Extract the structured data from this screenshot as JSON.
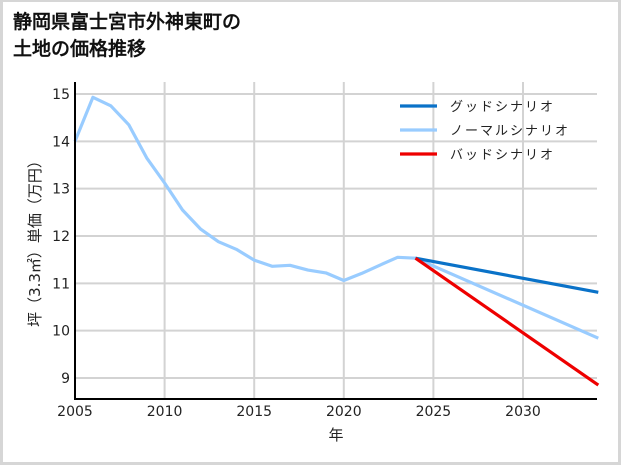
{
  "title": "静岡県富士宮市外神東町の\n土地の価格推移",
  "chart_data": {
    "type": "line",
    "title": "静岡県富士宮市外神東町の土地の価格推移",
    "xlabel": "年",
    "ylabel": "坪（3.3㎡）単価（万円）",
    "xlim": [
      2005,
      2034.2
    ],
    "ylim": [
      8.55,
      15.3
    ],
    "xticks": [
      2005,
      2010,
      2015,
      2020,
      2025,
      2030
    ],
    "yticks": [
      9,
      10,
      11,
      12,
      13,
      14,
      15
    ],
    "grid": true,
    "legend_position": "upper right",
    "series": [
      {
        "name": "グッドシナリオ",
        "color": "#0a72c8",
        "x": [
          2024,
          2034.2
        ],
        "y": [
          11.53,
          10.81
        ]
      },
      {
        "name": "ノーマルシナリオ",
        "color": "#99ccff",
        "x": [
          2005,
          2006,
          2007,
          2008,
          2009,
          2010,
          2011,
          2012,
          2013,
          2014,
          2015,
          2016,
          2017,
          2018,
          2019,
          2020,
          2021,
          2022,
          2023,
          2024,
          2034.2
        ],
        "y": [
          14.0,
          14.93,
          14.75,
          14.35,
          13.65,
          13.12,
          12.55,
          12.15,
          11.88,
          11.72,
          11.49,
          11.36,
          11.38,
          11.28,
          11.22,
          11.06,
          11.21,
          11.38,
          11.55,
          11.53,
          9.84
        ]
      },
      {
        "name": "バッドシナリオ",
        "color": "#ee0000",
        "x": [
          2024,
          2034.2
        ],
        "y": [
          11.53,
          8.85
        ]
      }
    ]
  }
}
